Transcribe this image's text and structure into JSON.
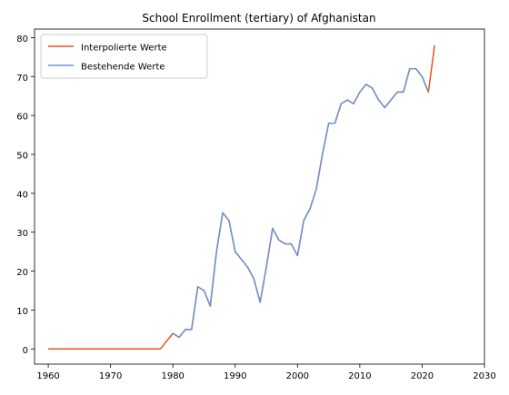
{
  "chart_data": {
    "type": "line",
    "title": "School Enrollment (tertiary) of Afghanistan",
    "xlabel": "",
    "ylabel": "",
    "xlim": [
      1957.8,
      2030
    ],
    "ylim": [
      -3.9,
      82.2
    ],
    "xticks": [
      1960,
      1970,
      1980,
      1990,
      2000,
      2010,
      2020,
      2030
    ],
    "yticks": [
      0,
      10,
      20,
      30,
      40,
      50,
      60,
      70,
      80
    ],
    "grid": false,
    "legend_position": "top-left",
    "series": [
      {
        "name": "Interpolierte Werte",
        "color": "#e8511f",
        "x": [
          1960,
          1961,
          1962,
          1963,
          1964,
          1965,
          1966,
          1967,
          1968,
          1969,
          1970,
          1971,
          1972,
          1973,
          1974,
          1975,
          1976,
          1977,
          1978,
          1979,
          1980,
          1981,
          1982,
          1983,
          1984,
          1985,
          1986,
          1987,
          1988,
          1989,
          1990,
          1991,
          1992,
          1993,
          1994,
          1995,
          1996,
          1997,
          1998,
          1999,
          2000,
          2001,
          2002,
          2003,
          2004,
          2005,
          2006,
          2007,
          2008,
          2009,
          2010,
          2011,
          2012,
          2013,
          2014,
          2015,
          2016,
          2017,
          2018,
          2019,
          2020,
          2021,
          2022
        ],
        "y": [
          0,
          0,
          0,
          0,
          0,
          0,
          0,
          0,
          0,
          0,
          0,
          0,
          0,
          0,
          0,
          0,
          0,
          0,
          0,
          2,
          4,
          3,
          5,
          5,
          16,
          15,
          11,
          25,
          35,
          33,
          25,
          23,
          21,
          18,
          12,
          21,
          31,
          28,
          27,
          27,
          24,
          33,
          36,
          41,
          50,
          58,
          58,
          63,
          64,
          63,
          66,
          68,
          67,
          64,
          62,
          64,
          66,
          66,
          72,
          72,
          70,
          66,
          78
        ]
      },
      {
        "name": "Bestehende Werte",
        "color": "#6b93d6",
        "x": [
          1980,
          1981,
          1982,
          1983,
          1984,
          1985,
          1986,
          1987,
          1988,
          1989,
          1990,
          1991,
          1992,
          1993,
          1994,
          1995,
          1996,
          1997,
          1998,
          1999,
          2000,
          2001,
          2002,
          2003,
          2004,
          2005,
          2006,
          2007,
          2008,
          2009,
          2010,
          2011,
          2012,
          2013,
          2014,
          2015,
          2016,
          2017,
          2018,
          2019,
          2020,
          2021
        ],
        "y": [
          4,
          3,
          5,
          5,
          16,
          15,
          11,
          25,
          35,
          33,
          25,
          23,
          21,
          18,
          12,
          21,
          31,
          28,
          27,
          27,
          24,
          33,
          36,
          41,
          50,
          58,
          58,
          63,
          64,
          63,
          66,
          68,
          67,
          64,
          62,
          64,
          66,
          66,
          72,
          72,
          70,
          66
        ]
      }
    ]
  }
}
